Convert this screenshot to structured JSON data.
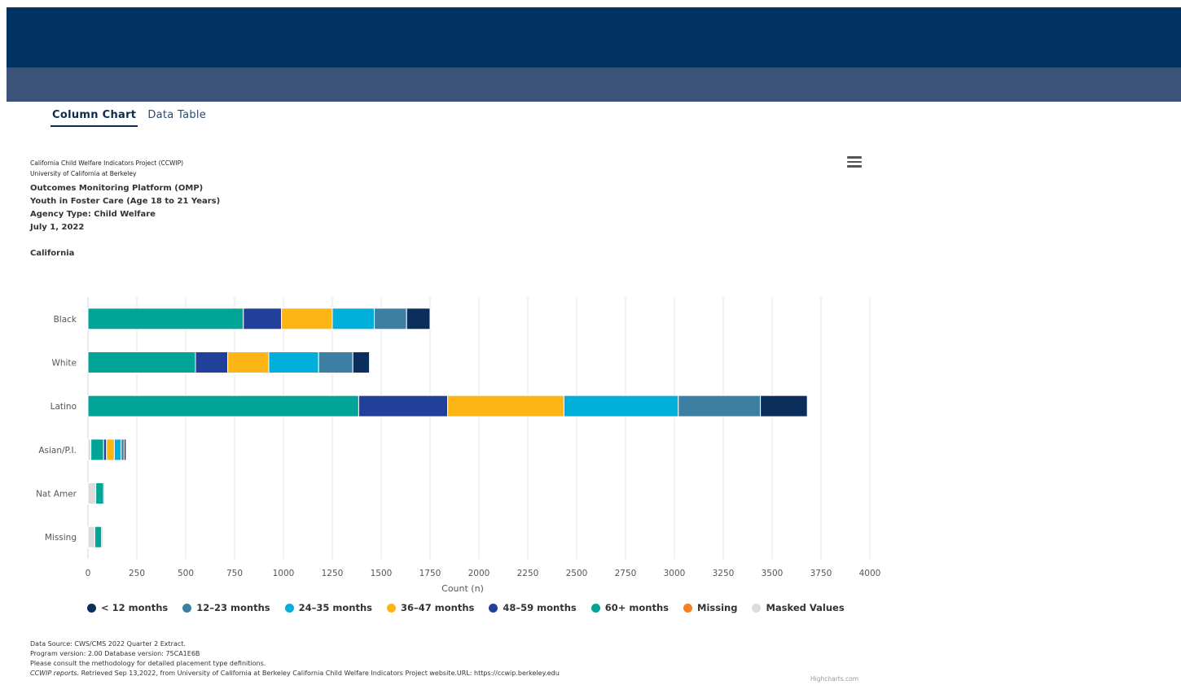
{
  "tabs": [
    {
      "label": "Column Chart",
      "active": true
    },
    {
      "label": "Data Table",
      "active": false
    }
  ],
  "header": {
    "line1": "California Child Welfare Indicators Project (CCWIP)",
    "line2": "University of California at Berkeley",
    "line3": "Outcomes Monitoring Platform (OMP)",
    "line4": "Youth in Foster Care (Age 18 to 21 Years)",
    "line5": "Agency Type: Child Welfare",
    "line6": "July 1, 2022",
    "line7": "California"
  },
  "menu_icon": "hamburger-menu-icon",
  "chart_data": {
    "type": "bar",
    "stacked": true,
    "orientation": "horizontal",
    "categories": [
      "Black",
      "White",
      "Latino",
      "Asian/P.I.",
      "Nat Amer",
      "Missing"
    ],
    "xlabel": "Count (n)",
    "xlim": [
      0,
      4000
    ],
    "xticks": [
      0,
      250,
      500,
      750,
      1000,
      1250,
      1500,
      1750,
      2000,
      2250,
      2500,
      2750,
      3000,
      3250,
      3500,
      3750,
      4000
    ],
    "grid": true,
    "legend_position": "bottom",
    "stack_order": [
      "Masked Values",
      "Missing",
      "60+ months",
      "48–59 months",
      "36–47 months",
      "24–35 months",
      "12–23 months",
      "< 12 months"
    ],
    "series": [
      {
        "name": "< 12 months",
        "color": "#0b2e5c",
        "values": [
          120,
          85,
          240,
          10,
          0,
          0
        ]
      },
      {
        "name": "12–23 months",
        "color": "#3d7fa3",
        "values": [
          165,
          175,
          420,
          15,
          5,
          5
        ]
      },
      {
        "name": "24–35 months",
        "color": "#00b0db",
        "values": [
          215,
          255,
          585,
          35,
          0,
          0
        ]
      },
      {
        "name": "36–47 months",
        "color": "#fdb515",
        "values": [
          260,
          210,
          595,
          40,
          0,
          0
        ]
      },
      {
        "name": "48–59 months",
        "color": "#21409a",
        "values": [
          195,
          165,
          455,
          15,
          0,
          0
        ]
      },
      {
        "name": "60+ months",
        "color": "#00a597",
        "values": [
          795,
          550,
          1385,
          65,
          40,
          35
        ]
      },
      {
        "name": "Missing",
        "color": "#f58025",
        "values": [
          0,
          0,
          0,
          0,
          0,
          0
        ]
      },
      {
        "name": "Masked Values",
        "color": "#dcdcdc",
        "values": [
          0,
          0,
          0,
          15,
          40,
          35
        ]
      }
    ]
  },
  "legend_items": [
    {
      "label": "< 12 months",
      "color": "#0b2e5c"
    },
    {
      "label": "12–23 months",
      "color": "#3d7fa3"
    },
    {
      "label": "24–35 months",
      "color": "#00b0db"
    },
    {
      "label": "36–47 months",
      "color": "#fdb515"
    },
    {
      "label": "48–59 months",
      "color": "#21409a"
    },
    {
      "label": "60+ months",
      "color": "#00a597"
    },
    {
      "label": "Missing",
      "color": "#f58025"
    },
    {
      "label": "Masked Values",
      "color": "#dcdcdc"
    }
  ],
  "footer": {
    "line1": "Data Source: CWS/CMS 2022 Quarter 2 Extract.",
    "line2": "Program version: 2.00 Database version: 75CA1E6B",
    "line3": "Please consult the methodology for detailed placement type definitions.",
    "line4_italic": "CCWIP reports.",
    "line4_rest": " Retrieved Sep 13,2022, from University of California at Berkeley California Child Welfare Indicators Project website.URL: https://ccwip.berkeley.edu"
  },
  "credit": "Highcharts.com"
}
